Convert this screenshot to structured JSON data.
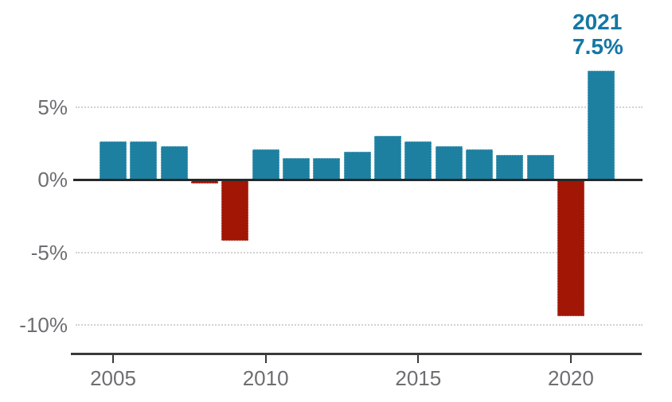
{
  "chart_data": {
    "type": "bar",
    "title": "",
    "xlabel": "",
    "ylabel": "",
    "unit": "%",
    "x": [
      2005,
      2006,
      2007,
      2008,
      2009,
      2010,
      2011,
      2012,
      2013,
      2014,
      2015,
      2016,
      2017,
      2018,
      2019,
      2020,
      2021
    ],
    "values": [
      2.6,
      2.6,
      2.3,
      -0.3,
      -4.2,
      2.1,
      1.5,
      1.5,
      1.9,
      3.0,
      2.6,
      2.3,
      2.1,
      1.7,
      1.7,
      -9.4,
      7.5
    ],
    "ylim": [
      -11.8,
      8.3
    ],
    "grid": "horizontal dotted lines at non-zero ticks",
    "legend": "none",
    "y_ticks": [
      {
        "value": 5,
        "label": "5%"
      },
      {
        "value": 0,
        "label": "0%"
      },
      {
        "value": -5,
        "label": "-5%"
      },
      {
        "value": -10,
        "label": "-10%"
      }
    ],
    "x_ticks": [
      {
        "value": 2005,
        "label": "2005"
      },
      {
        "value": 2010,
        "label": "2010"
      },
      {
        "value": 2015,
        "label": "2015"
      },
      {
        "value": 2020,
        "label": "2020"
      }
    ],
    "colors": {
      "positive_bar": "#1d80a1",
      "negative_bar": "#a11605",
      "zero_line": "#26282a",
      "axis_line": "#3a3a3a",
      "grid_line": "#d2d2d2",
      "tick_label": "#6e6e72",
      "annotation": "#1577a5"
    },
    "annotation": {
      "line1": "2021",
      "line2": "7.5%"
    }
  }
}
